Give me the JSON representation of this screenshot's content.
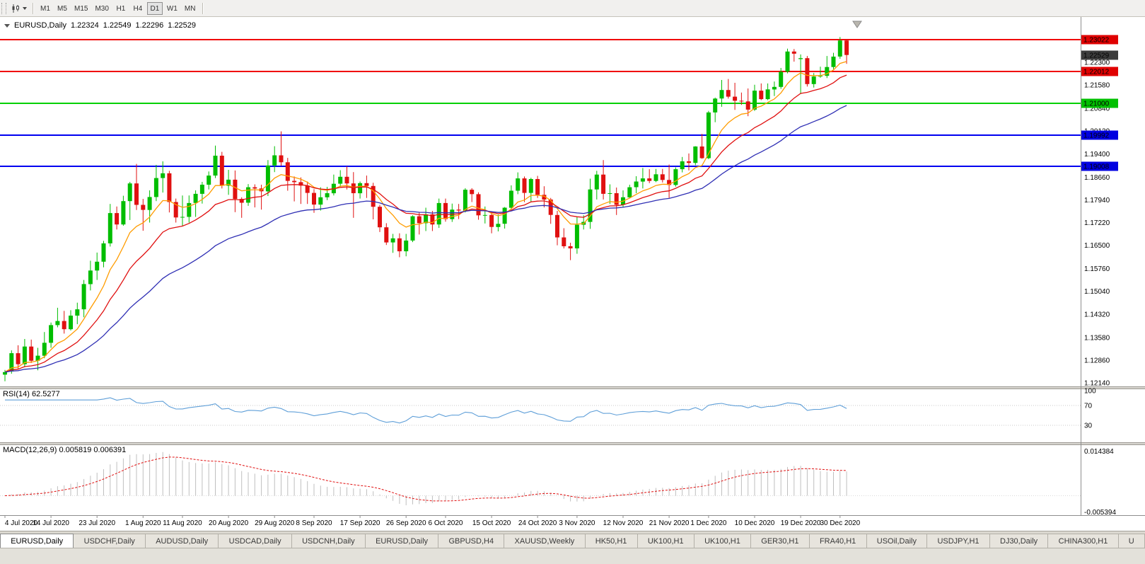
{
  "toolbar": {
    "timeframes": [
      "M1",
      "M5",
      "M15",
      "M30",
      "H1",
      "H4",
      "D1",
      "W1",
      "MN"
    ],
    "active_timeframe": "D1"
  },
  "chart_header": {
    "symbol": "EURUSD,Daily",
    "open": "1.22324",
    "high": "1.22549",
    "low": "1.22296",
    "close": "1.22529"
  },
  "price_axis": {
    "labels": [
      "1.22300",
      "1.21580",
      "1.20840",
      "1.20120",
      "1.19400",
      "1.18660",
      "1.17940",
      "1.17220",
      "1.16500",
      "1.15760",
      "1.15040",
      "1.14320",
      "1.13580",
      "1.12860",
      "1.12140"
    ]
  },
  "price_tags": [
    {
      "text": "1.23022",
      "price": 1.23022,
      "color": "#e00000"
    },
    {
      "text": "1.22529",
      "price": 1.22529,
      "color": "#3c3c3c"
    },
    {
      "text": "1.22012",
      "price": 1.22012,
      "color": "#e00000"
    },
    {
      "text": "1.21000",
      "price": 1.21,
      "color": "#00c000"
    },
    {
      "text": "1.19992",
      "price": 1.19992,
      "color": "#0000e0"
    },
    {
      "text": "1.19008",
      "price": 1.19008,
      "color": "#0000e0"
    }
  ],
  "indicators": {
    "rsi": {
      "label": "RSI(14) 62.5277",
      "period": 14,
      "levels": [
        "100",
        "70",
        "30"
      ],
      "line_color": "#5f9fd8"
    },
    "macd": {
      "label": "MACD(12,26,9) 0.005819 0.006391",
      "fast": 12,
      "slow": 26,
      "signal": 9,
      "axis_max": "0.014384",
      "axis_min": "-0.005394",
      "hist_color": "#bfbfbf",
      "signal_color": "#e01010"
    }
  },
  "chart_data": {
    "type": "candlestick",
    "symbol": "EURUSD",
    "timeframe": "Daily",
    "colors": {
      "bull": "#00bd00",
      "bear": "#e01010"
    },
    "moving_averages": [
      {
        "period": 8,
        "color": "#ff9c00"
      },
      {
        "period": 16,
        "color": "#e01010"
      },
      {
        "period": 34,
        "color": "#2f2fb4"
      }
    ],
    "hlines": [
      {
        "price": 1.23022,
        "color": "#f00000"
      },
      {
        "price": 1.22012,
        "color": "#f00000"
      },
      {
        "price": 1.21,
        "color": "#00d000"
      },
      {
        "price": 1.19992,
        "color": "#0000f0"
      },
      {
        "price": 1.19008,
        "color": "#0000f0"
      }
    ],
    "current_price": 1.22529,
    "x_labels": [
      {
        "text": "4 Jul 2020",
        "i": 0
      },
      {
        "text": "14 Jul 2020",
        "i": 7
      },
      {
        "text": "23 Jul 2020",
        "i": 14
      },
      {
        "text": "1 Aug 2020",
        "i": 21
      },
      {
        "text": "11 Aug 2020",
        "i": 27
      },
      {
        "text": "20 Aug 2020",
        "i": 34
      },
      {
        "text": "29 Aug 2020",
        "i": 41
      },
      {
        "text": "8 Sep 2020",
        "i": 47
      },
      {
        "text": "17 Sep 2020",
        "i": 54
      },
      {
        "text": "26 Sep 2020",
        "i": 61
      },
      {
        "text": "6 Oct 2020",
        "i": 67
      },
      {
        "text": "15 Oct 2020",
        "i": 74
      },
      {
        "text": "24 Oct 2020",
        "i": 81
      },
      {
        "text": "3 Nov 2020",
        "i": 87
      },
      {
        "text": "12 Nov 2020",
        "i": 94
      },
      {
        "text": "21 Nov 2020",
        "i": 101
      },
      {
        "text": "1 Dec 2020",
        "i": 107
      },
      {
        "text": "10 Dec 2020",
        "i": 114
      },
      {
        "text": "19 Dec 2020",
        "i": 121
      },
      {
        "text": "30 Dec 2020",
        "i": 127
      }
    ],
    "candles": [
      [
        1.124,
        1.1255,
        1.1219,
        1.1248
      ],
      [
        1.125,
        1.1317,
        1.1243,
        1.1308
      ],
      [
        1.1308,
        1.1333,
        1.1259,
        1.1273
      ],
      [
        1.1273,
        1.1353,
        1.1263,
        1.1329
      ],
      [
        1.1329,
        1.1351,
        1.1277,
        1.1284
      ],
      [
        1.1284,
        1.1325,
        1.1254,
        1.13
      ],
      [
        1.13,
        1.1375,
        1.1292,
        1.1341
      ],
      [
        1.1341,
        1.1405,
        1.1325,
        1.1397
      ],
      [
        1.1397,
        1.1452,
        1.139,
        1.141
      ],
      [
        1.141,
        1.1442,
        1.137,
        1.1384
      ],
      [
        1.1384,
        1.1444,
        1.138,
        1.1427
      ],
      [
        1.1427,
        1.1468,
        1.14,
        1.1447
      ],
      [
        1.1447,
        1.154,
        1.1422,
        1.1527
      ],
      [
        1.1527,
        1.1601,
        1.1507,
        1.157
      ],
      [
        1.157,
        1.1627,
        1.154,
        1.1598
      ],
      [
        1.1598,
        1.1664,
        1.158,
        1.1656
      ],
      [
        1.1656,
        1.1781,
        1.1646,
        1.1752
      ],
      [
        1.1752,
        1.1773,
        1.17,
        1.1716
      ],
      [
        1.1716,
        1.1807,
        1.1712,
        1.179
      ],
      [
        1.179,
        1.1851,
        1.173,
        1.1846
      ],
      [
        1.1846,
        1.1908,
        1.1762,
        1.1778
      ],
      [
        1.1778,
        1.1797,
        1.1696,
        1.1762
      ],
      [
        1.1762,
        1.1824,
        1.1722,
        1.1803
      ],
      [
        1.1803,
        1.1905,
        1.179,
        1.1863
      ],
      [
        1.1863,
        1.1916,
        1.1817,
        1.1878
      ],
      [
        1.1878,
        1.1886,
        1.1754,
        1.1787
      ],
      [
        1.1787,
        1.1798,
        1.1722,
        1.1738
      ],
      [
        1.1738,
        1.1808,
        1.1711,
        1.174
      ],
      [
        1.174,
        1.1808,
        1.1722,
        1.1784
      ],
      [
        1.1784,
        1.1824,
        1.174,
        1.1813
      ],
      [
        1.1813,
        1.1851,
        1.1782,
        1.1842
      ],
      [
        1.1842,
        1.1884,
        1.1827,
        1.1871
      ],
      [
        1.1871,
        1.1966,
        1.1863,
        1.1934
      ],
      [
        1.1934,
        1.1946,
        1.183,
        1.1839
      ],
      [
        1.1839,
        1.1889,
        1.181,
        1.1858
      ],
      [
        1.1858,
        1.1887,
        1.1755,
        1.1797
      ],
      [
        1.1797,
        1.1802,
        1.1737,
        1.1785
      ],
      [
        1.1785,
        1.1844,
        1.1775,
        1.1834
      ],
      [
        1.1834,
        1.1843,
        1.177,
        1.183
      ],
      [
        1.183,
        1.1842,
        1.1763,
        1.1821
      ],
      [
        1.1821,
        1.192,
        1.1806,
        1.1903
      ],
      [
        1.1903,
        1.1964,
        1.1882,
        1.1935
      ],
      [
        1.1935,
        1.2011,
        1.1902,
        1.1913
      ],
      [
        1.1913,
        1.1927,
        1.1823,
        1.1854
      ],
      [
        1.1854,
        1.1868,
        1.1789,
        1.185
      ],
      [
        1.185,
        1.1865,
        1.1781,
        1.1839
      ],
      [
        1.1839,
        1.1852,
        1.1781,
        1.1816
      ],
      [
        1.1816,
        1.1828,
        1.1753,
        1.1779
      ],
      [
        1.1779,
        1.1834,
        1.176,
        1.1802
      ],
      [
        1.1802,
        1.1835,
        1.1793,
        1.1815
      ],
      [
        1.1815,
        1.1874,
        1.1808,
        1.1845
      ],
      [
        1.1845,
        1.1888,
        1.1835,
        1.1867
      ],
      [
        1.1867,
        1.19,
        1.1827,
        1.1846
      ],
      [
        1.1846,
        1.1882,
        1.1737,
        1.1815
      ],
      [
        1.1815,
        1.1852,
        1.1798,
        1.1847
      ],
      [
        1.1847,
        1.1871,
        1.18,
        1.1838
      ],
      [
        1.1838,
        1.1848,
        1.1732,
        1.1772
      ],
      [
        1.1772,
        1.1778,
        1.1692,
        1.1707
      ],
      [
        1.1707,
        1.172,
        1.1651,
        1.1659
      ],
      [
        1.1659,
        1.1686,
        1.1626,
        1.1672
      ],
      [
        1.1672,
        1.1688,
        1.1612,
        1.1631
      ],
      [
        1.1631,
        1.1686,
        1.1615,
        1.1665
      ],
      [
        1.1665,
        1.1745,
        1.166,
        1.1742
      ],
      [
        1.1742,
        1.1755,
        1.1684,
        1.172
      ],
      [
        1.172,
        1.1769,
        1.1695,
        1.1748
      ],
      [
        1.1748,
        1.1759,
        1.1695,
        1.1716
      ],
      [
        1.1716,
        1.1798,
        1.1705,
        1.1784
      ],
      [
        1.1784,
        1.1798,
        1.1725,
        1.1733
      ],
      [
        1.1733,
        1.1782,
        1.1724,
        1.1763
      ],
      [
        1.1763,
        1.1781,
        1.1733,
        1.176
      ],
      [
        1.176,
        1.1831,
        1.1754,
        1.1826
      ],
      [
        1.1826,
        1.1831,
        1.1787,
        1.1812
      ],
      [
        1.1812,
        1.1818,
        1.1731,
        1.1745
      ],
      [
        1.1745,
        1.1773,
        1.1719,
        1.1746
      ],
      [
        1.1746,
        1.1758,
        1.1688,
        1.1708
      ],
      [
        1.1708,
        1.1747,
        1.1694,
        1.1718
      ],
      [
        1.1718,
        1.1771,
        1.1703,
        1.1769
      ],
      [
        1.1769,
        1.184,
        1.1762,
        1.1823
      ],
      [
        1.1823,
        1.1881,
        1.1812,
        1.1862
      ],
      [
        1.1862,
        1.1868,
        1.1787,
        1.1816
      ],
      [
        1.1816,
        1.1864,
        1.1786,
        1.186
      ],
      [
        1.186,
        1.187,
        1.18,
        1.181
      ],
      [
        1.181,
        1.1837,
        1.177,
        1.1795
      ],
      [
        1.1795,
        1.18,
        1.1718,
        1.1746
      ],
      [
        1.1746,
        1.1759,
        1.165,
        1.1675
      ],
      [
        1.1675,
        1.1704,
        1.164,
        1.1647
      ],
      [
        1.1647,
        1.1658,
        1.1603,
        1.164
      ],
      [
        1.164,
        1.174,
        1.1623,
        1.1715
      ],
      [
        1.1715,
        1.1745,
        1.17,
        1.1724
      ],
      [
        1.1724,
        1.1861,
        1.1702,
        1.1827
      ],
      [
        1.1827,
        1.1886,
        1.1795,
        1.1874
      ],
      [
        1.1874,
        1.192,
        1.1795,
        1.1813
      ],
      [
        1.1813,
        1.1843,
        1.1781,
        1.1815
      ],
      [
        1.1815,
        1.1833,
        1.1746,
        1.1778
      ],
      [
        1.1778,
        1.1824,
        1.1771,
        1.1802
      ],
      [
        1.1802,
        1.1842,
        1.18,
        1.1834
      ],
      [
        1.1834,
        1.1869,
        1.1815,
        1.1852
      ],
      [
        1.1852,
        1.1895,
        1.183,
        1.1862
      ],
      [
        1.1862,
        1.1891,
        1.1847,
        1.1854
      ],
      [
        1.1854,
        1.1892,
        1.185,
        1.1875
      ],
      [
        1.1875,
        1.1892,
        1.1849,
        1.1857
      ],
      [
        1.1857,
        1.1906,
        1.18,
        1.1841
      ],
      [
        1.1841,
        1.1897,
        1.1836,
        1.1891
      ],
      [
        1.1891,
        1.193,
        1.1881,
        1.1916
      ],
      [
        1.1916,
        1.1941,
        1.1887,
        1.1911
      ],
      [
        1.1911,
        1.1964,
        1.1904,
        1.1963
      ],
      [
        1.1963,
        1.2003,
        1.1924,
        1.1926
      ],
      [
        1.1926,
        1.2076,
        1.1923,
        1.2071
      ],
      [
        1.2071,
        1.2118,
        1.204,
        1.2115
      ],
      [
        1.2115,
        1.2174,
        1.2089,
        1.2142
      ],
      [
        1.2142,
        1.2177,
        1.2115,
        1.2121
      ],
      [
        1.2121,
        1.2165,
        1.2079,
        1.2108
      ],
      [
        1.2108,
        1.2134,
        1.2095,
        1.2106
      ],
      [
        1.2106,
        1.2147,
        1.2059,
        1.208
      ],
      [
        1.208,
        1.2159,
        1.2076,
        1.214
      ],
      [
        1.214,
        1.2163,
        1.211,
        1.2113
      ],
      [
        1.2113,
        1.2163,
        1.211,
        1.2144
      ],
      [
        1.2144,
        1.2169,
        1.2123,
        1.2152
      ],
      [
        1.2152,
        1.2212,
        1.2146,
        1.22
      ],
      [
        1.22,
        1.2273,
        1.2195,
        1.2264
      ],
      [
        1.2264,
        1.2272,
        1.2232,
        1.2257
      ],
      [
        1.224,
        1.2255,
        1.2129,
        1.2243
      ],
      [
        1.2243,
        1.225,
        1.2153,
        1.2161
      ],
      [
        1.2161,
        1.2196,
        1.215,
        1.2185
      ],
      [
        1.2185,
        1.2216,
        1.2181,
        1.2187
      ],
      [
        1.2187,
        1.225,
        1.218,
        1.2215
      ],
      [
        1.2215,
        1.226,
        1.2208,
        1.2248
      ],
      [
        1.2248,
        1.231,
        1.2241,
        1.2299
      ],
      [
        1.2299,
        1.2304,
        1.2225,
        1.2253
      ]
    ]
  },
  "tabs": {
    "active_index": 0,
    "items": [
      "EURUSD,Daily",
      "USDCHF,Daily",
      "AUDUSD,Daily",
      "USDCAD,Daily",
      "USDCNH,Daily",
      "EURUSD,Daily",
      "GBPUSD,H4",
      "XAUUSD,Weekly",
      "HK50,H1",
      "UK100,H1",
      "UK100,H1",
      "GER30,H1",
      "FRA40,H1",
      "USOil,Daily",
      "USDJPY,H1",
      "DJ30,Daily",
      "CHINA300,H1",
      "U"
    ]
  }
}
